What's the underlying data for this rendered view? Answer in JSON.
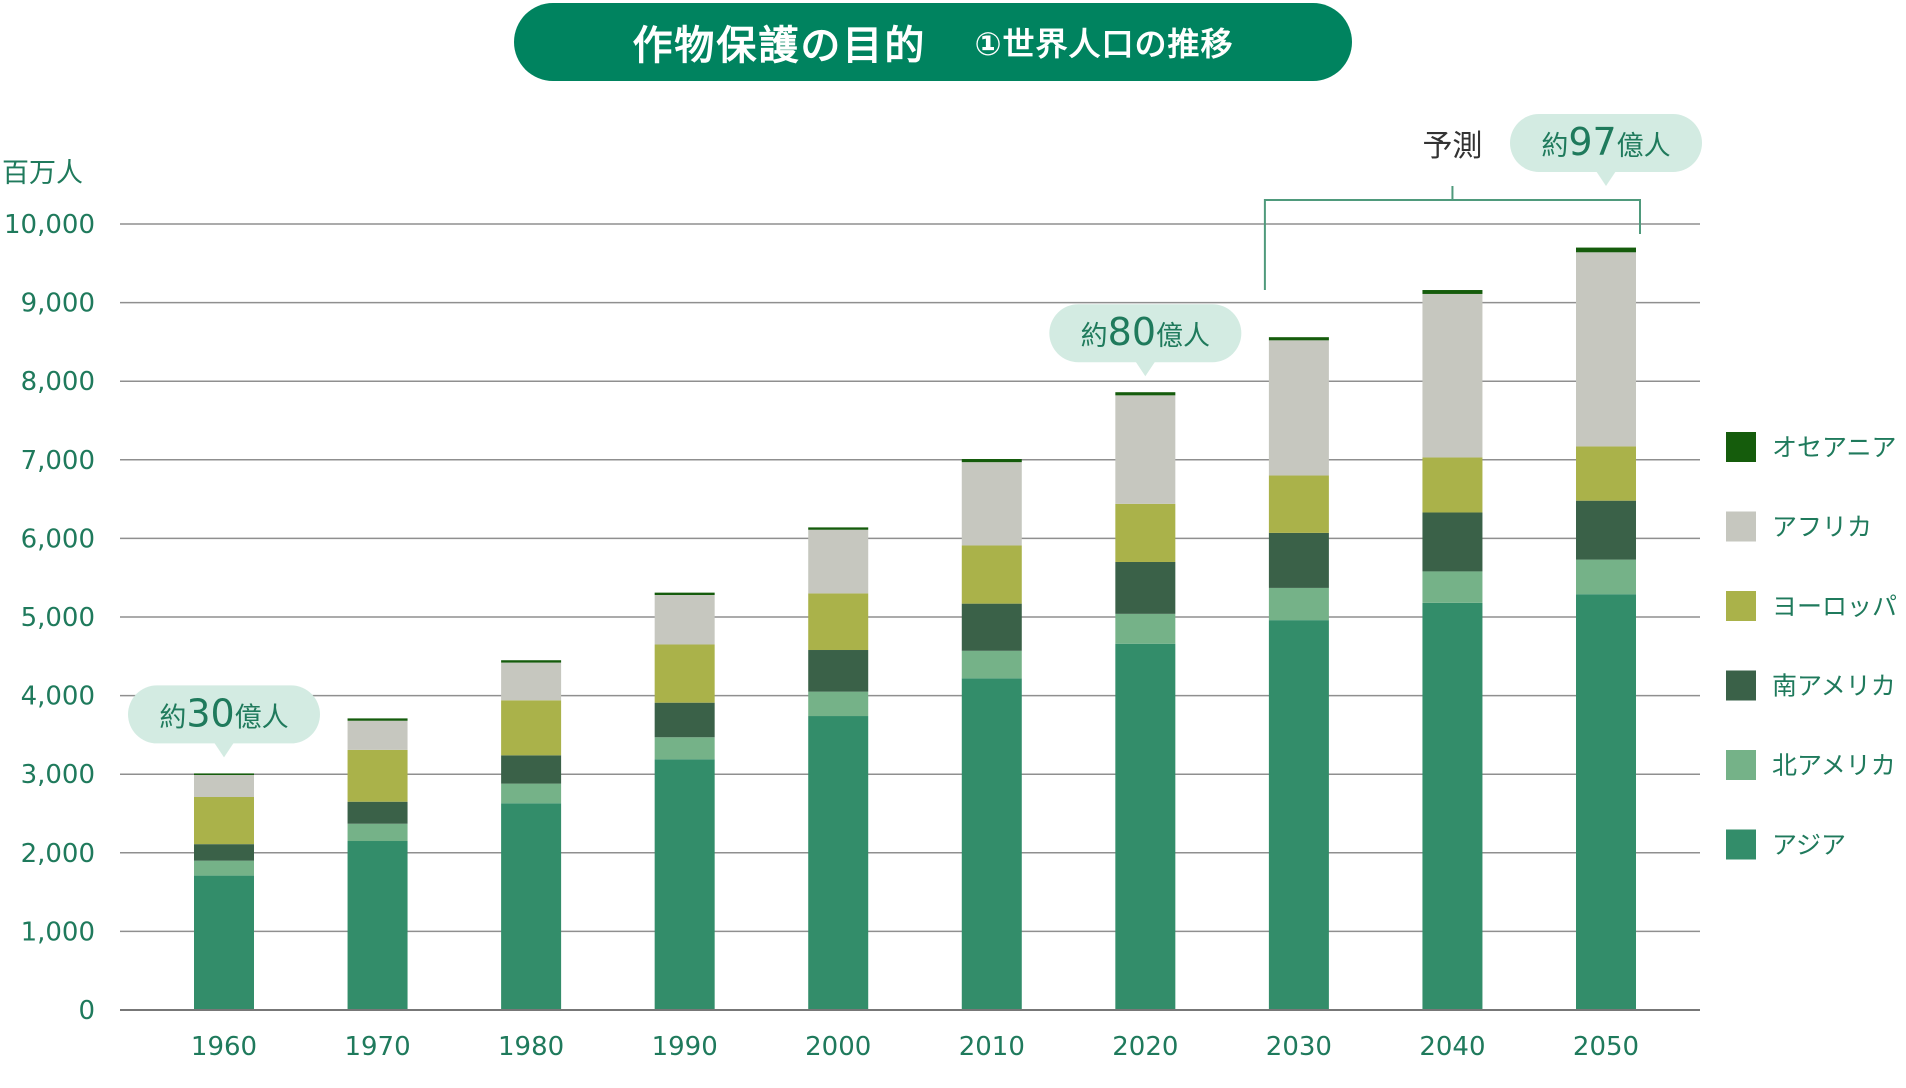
{
  "header": {
    "title": "作物保護の目的",
    "subtitle": "①世界人口の推移"
  },
  "chart_data": {
    "type": "bar",
    "stacked": true,
    "ylabel": "百万人",
    "ylim": [
      0,
      10000
    ],
    "yticks": [
      "0",
      "1,000",
      "2,000",
      "3,000",
      "4,000",
      "5,000",
      "6,000",
      "7,000",
      "8,000",
      "9,000",
      "10,000"
    ],
    "grid": true,
    "legend_position": "right",
    "categories": [
      "1960",
      "1970",
      "1980",
      "1990",
      "2000",
      "2010",
      "2020",
      "2030",
      "2040",
      "2050"
    ],
    "series": [
      {
        "name": "アジア",
        "color": "#338d6a",
        "values": [
          1710,
          2150,
          2630,
          3190,
          3740,
          4220,
          4660,
          4960,
          5180,
          5290
        ]
      },
      {
        "name": "北アメリカ",
        "color": "#75b288",
        "values": [
          190,
          220,
          250,
          280,
          310,
          350,
          380,
          410,
          400,
          440
        ]
      },
      {
        "name": "南アメリカ",
        "color": "#3a6148",
        "values": [
          210,
          280,
          360,
          440,
          530,
          600,
          660,
          700,
          750,
          750
        ]
      },
      {
        "name": "ヨーロッパ",
        "color": "#aab24a",
        "values": [
          600,
          660,
          700,
          740,
          720,
          740,
          740,
          730,
          700,
          690
        ]
      },
      {
        "name": "アフリカ",
        "color": "#c6c7bf",
        "values": [
          280,
          370,
          480,
          630,
          810,
          1060,
          1380,
          1720,
          2080,
          2470
        ]
      },
      {
        "name": "オセアニア",
        "color": "#155c0c",
        "values": [
          20,
          30,
          30,
          30,
          30,
          40,
          40,
          40,
          50,
          60
        ]
      }
    ],
    "legend_order": [
      "オセアニア",
      "アフリカ",
      "ヨーロッパ",
      "南アメリカ",
      "北アメリカ",
      "アジア"
    ],
    "annotations": [
      {
        "text_pre": "約",
        "number": "30",
        "text_post": "億人",
        "category": "1960"
      },
      {
        "text_pre": "約",
        "number": "80",
        "text_post": "億人",
        "category": "2020"
      },
      {
        "text_pre": "約",
        "number": "97",
        "text_post": "億人",
        "category": "2050"
      }
    ],
    "forecast": {
      "label": "予測",
      "from": "2030",
      "to": "2050"
    }
  }
}
